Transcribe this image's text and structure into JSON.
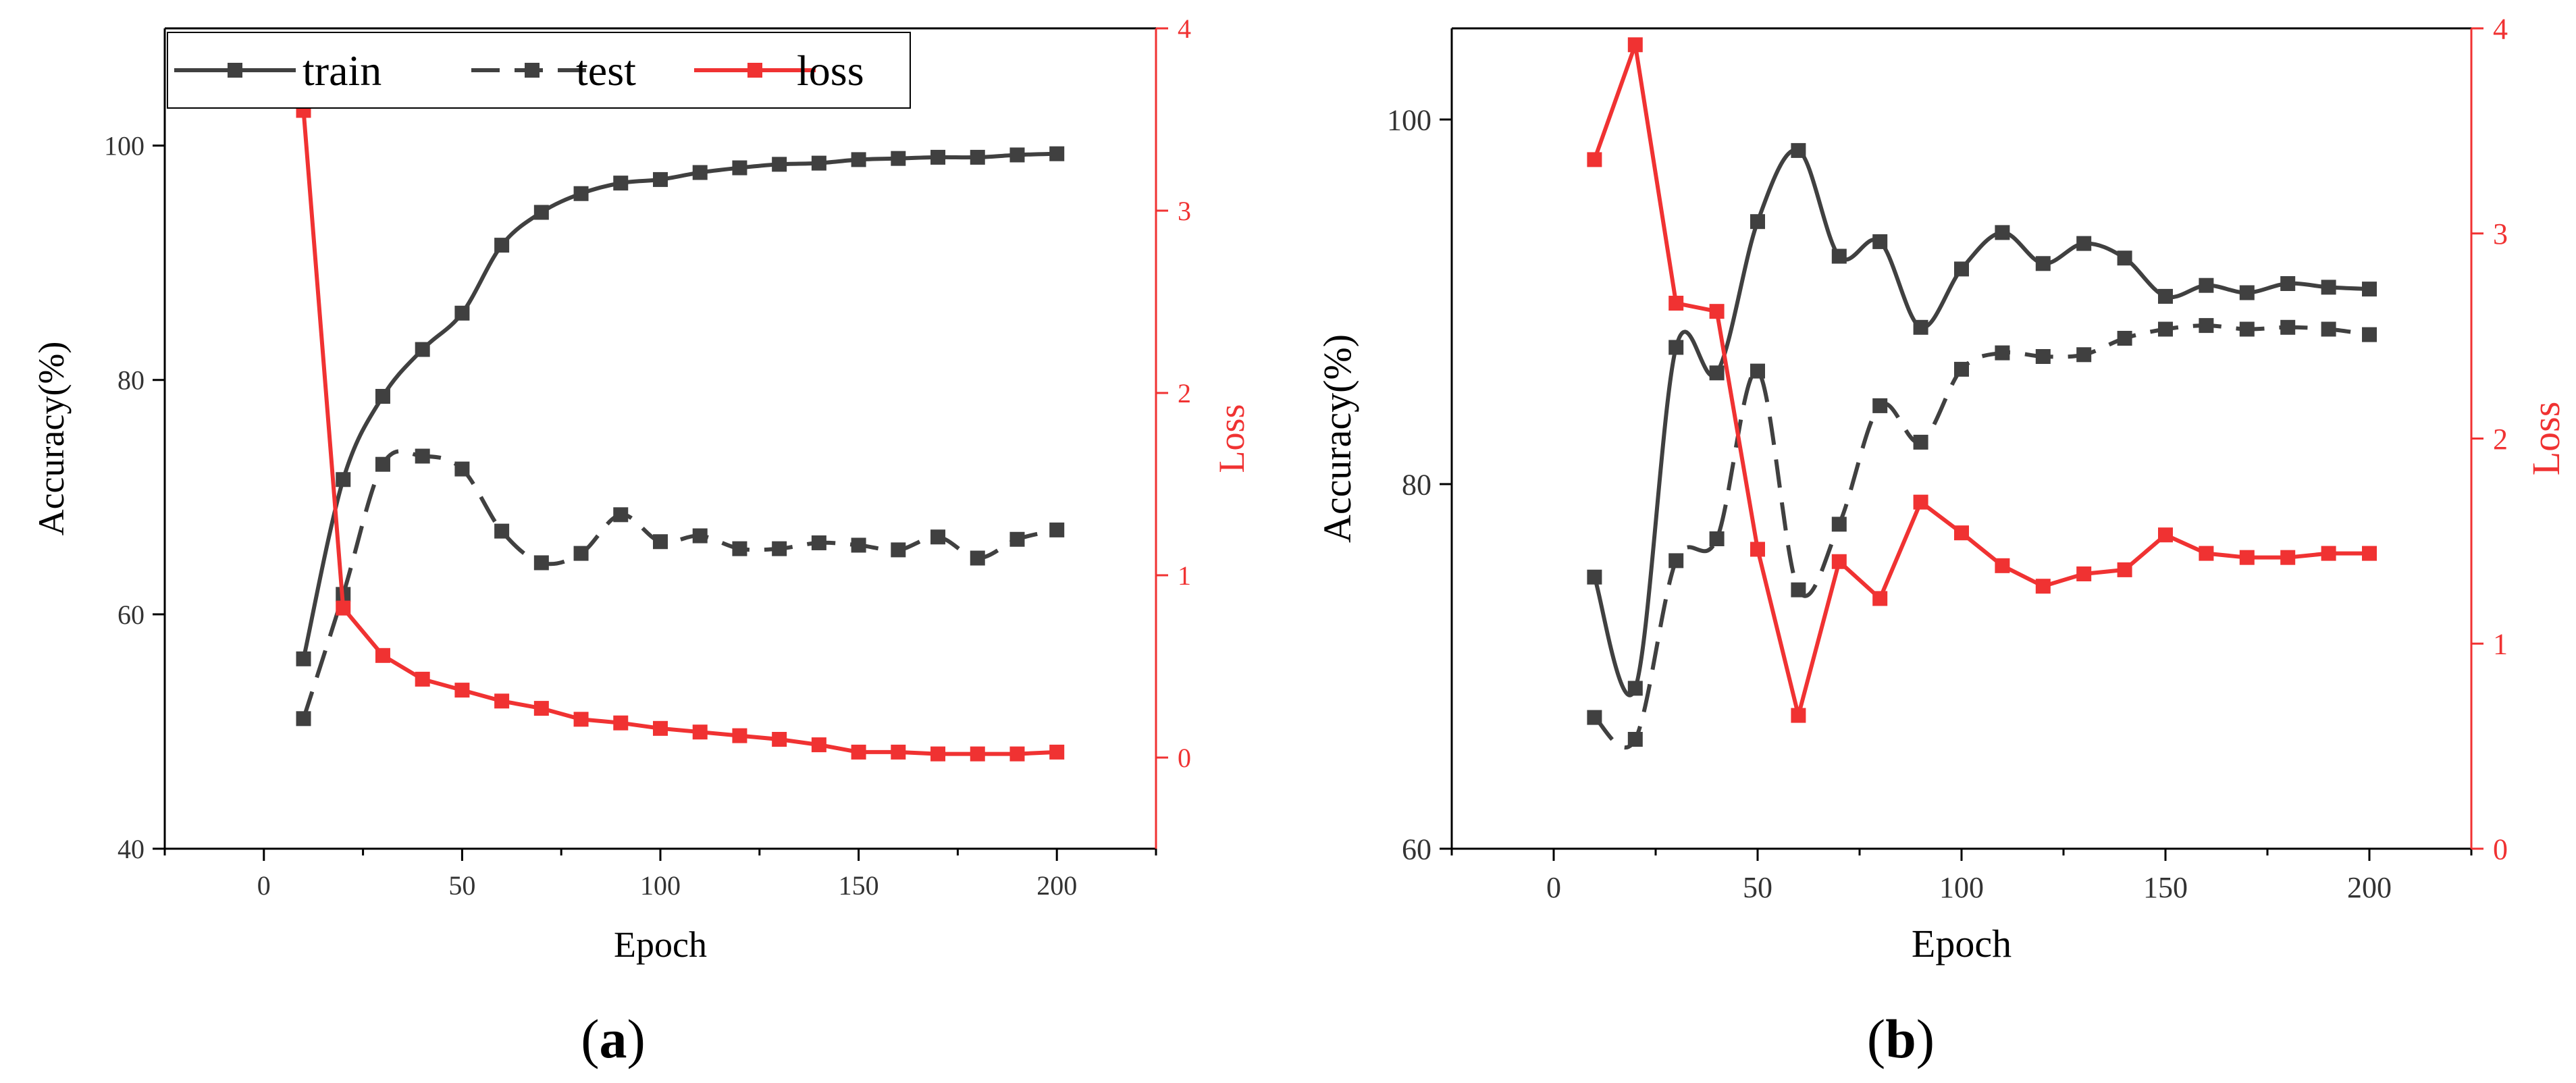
{
  "chart_data": [
    {
      "panel_label": "a",
      "type": "line",
      "xlabel": "Epoch",
      "ylabel": "Accuracy(%)",
      "y2label": "Loss",
      "xlim": [
        -25,
        225
      ],
      "ylim": [
        40,
        110
      ],
      "y2lim": [
        -0.5,
        4
      ],
      "xticks": [
        0,
        50,
        100,
        150,
        200
      ],
      "yticks": [
        40,
        60,
        80,
        100
      ],
      "y2ticks": [
        0,
        1,
        2,
        3,
        4
      ],
      "legend_position": "top-left",
      "x": [
        10,
        20,
        30,
        40,
        50,
        60,
        70,
        80,
        90,
        100,
        110,
        120,
        130,
        140,
        150,
        160,
        170,
        180,
        190,
        200
      ],
      "series": [
        {
          "name": "train",
          "axis": "left",
          "style": "solid",
          "color": "#404040",
          "values": [
            56.2,
            71.5,
            78.6,
            82.6,
            85.7,
            91.5,
            94.3,
            95.9,
            96.8,
            97.1,
            97.7,
            98.1,
            98.4,
            98.5,
            98.8,
            98.9,
            99.0,
            99.0,
            99.2,
            99.3
          ]
        },
        {
          "name": "test",
          "axis": "left",
          "style": "dashed",
          "color": "#404040",
          "values": [
            51.1,
            61.7,
            72.8,
            73.5,
            72.4,
            67.1,
            64.4,
            65.2,
            68.5,
            66.2,
            66.7,
            65.6,
            65.6,
            66.1,
            65.9,
            65.5,
            66.6,
            64.8,
            66.4,
            67.2
          ]
        },
        {
          "name": "loss",
          "axis": "right",
          "style": "solid",
          "color": "#f03232",
          "values": [
            3.55,
            0.82,
            0.56,
            0.43,
            0.37,
            0.31,
            0.27,
            0.21,
            0.19,
            0.16,
            0.14,
            0.12,
            0.1,
            0.07,
            0.03,
            0.03,
            0.02,
            0.02,
            0.02,
            0.03
          ]
        }
      ]
    },
    {
      "panel_label": "b",
      "type": "line",
      "xlabel": "Epoch",
      "ylabel": "Accuracy(%)",
      "y2label": "Loss",
      "xlim": [
        -25,
        225
      ],
      "ylim": [
        60,
        105
      ],
      "y2lim": [
        0,
        4
      ],
      "xticks": [
        0,
        50,
        100,
        150,
        200
      ],
      "yticks": [
        60,
        80,
        100
      ],
      "y2ticks": [
        0,
        1,
        2,
        3,
        4
      ],
      "x": [
        10,
        20,
        30,
        40,
        50,
        60,
        70,
        80,
        90,
        100,
        110,
        120,
        130,
        140,
        150,
        160,
        170,
        180,
        190,
        200
      ],
      "series": [
        {
          "name": "train",
          "axis": "left",
          "style": "solid",
          "color": "#404040",
          "values": [
            74.9,
            68.8,
            87.5,
            86.1,
            94.4,
            98.3,
            92.5,
            93.3,
            88.6,
            91.8,
            93.8,
            92.1,
            93.2,
            92.4,
            90.3,
            90.9,
            90.5,
            91.0,
            90.8,
            90.7
          ]
        },
        {
          "name": "test",
          "axis": "left",
          "style": "dashed",
          "color": "#404040",
          "values": [
            67.2,
            66.0,
            75.8,
            77.0,
            86.2,
            74.2,
            77.8,
            84.3,
            82.3,
            86.3,
            87.2,
            87.0,
            87.1,
            88.0,
            88.5,
            88.7,
            88.5,
            88.6,
            88.5,
            88.2
          ]
        },
        {
          "name": "loss",
          "axis": "right",
          "style": "solid",
          "color": "#f03232",
          "values": [
            3.36,
            3.92,
            2.66,
            2.62,
            1.46,
            0.65,
            1.4,
            1.22,
            1.69,
            1.54,
            1.38,
            1.28,
            1.34,
            1.36,
            1.53,
            1.44,
            1.42,
            1.42,
            1.44,
            1.44
          ]
        }
      ]
    }
  ],
  "colors": {
    "axis_black": "#000000",
    "series_dark": "#404040",
    "loss_red": "#f03232"
  }
}
